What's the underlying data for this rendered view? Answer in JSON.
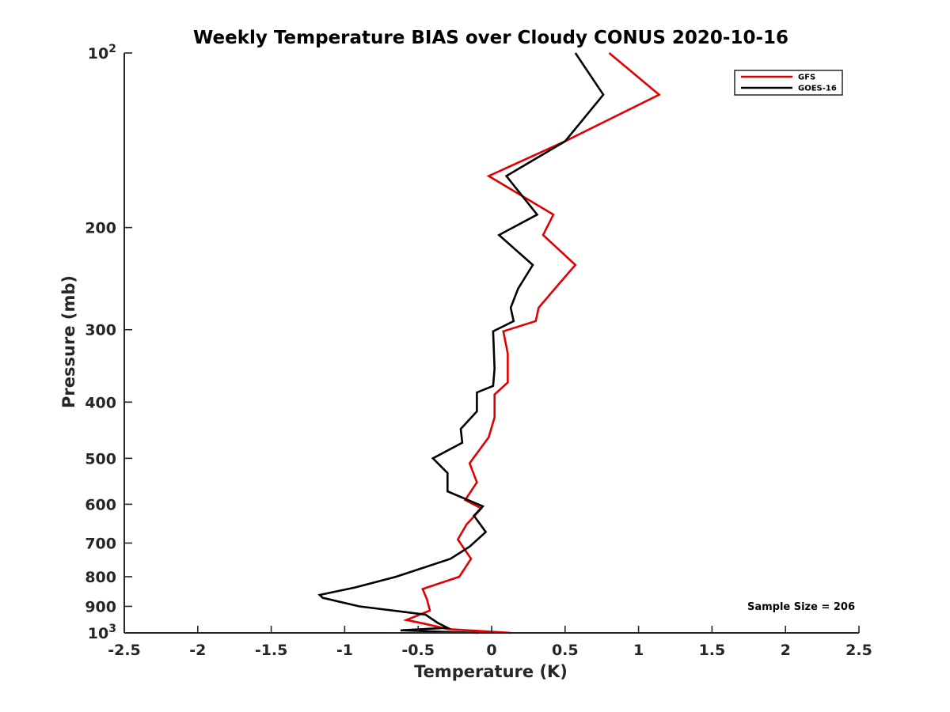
{
  "chart_data": {
    "type": "line",
    "title": "Weekly Temperature BIAS over Cloudy CONUS 2020-10-16",
    "xlabel": "Temperature (K)",
    "ylabel": "Pressure (mb)",
    "xlim": [
      -2.5,
      2.5
    ],
    "ylim": [
      1000,
      100
    ],
    "yscale": "log",
    "yreversed": true,
    "xticks": [
      -2.5,
      -2,
      -1.5,
      -1,
      -0.5,
      0,
      0.5,
      1,
      1.5,
      2,
      2.5
    ],
    "xtick_labels": [
      "-2.5",
      "-2",
      "-1.5",
      "-1",
      "-0.5",
      "0",
      "0.5",
      "1",
      "1.5",
      "2",
      "2.5"
    ],
    "yticks": [
      100,
      200,
      300,
      400,
      500,
      600,
      700,
      800,
      900,
      1000
    ],
    "ytick_labels": [
      {
        "base": "10",
        "exp": "2"
      },
      {
        "text": "200"
      },
      {
        "text": "300"
      },
      {
        "text": "400"
      },
      {
        "text": "500"
      },
      {
        "text": "600"
      },
      {
        "text": "700"
      },
      {
        "text": "800"
      },
      {
        "text": "900"
      },
      {
        "base": "10",
        "exp": "3"
      }
    ],
    "legend_position": "top-right",
    "annotation": "Sample Size = 206",
    "series": [
      {
        "name": "GFS",
        "color": "#e00000",
        "points": [
          [
            0.8,
            100
          ],
          [
            1.14,
            118
          ],
          [
            0.5,
            142
          ],
          [
            -0.02,
            163
          ],
          [
            0.42,
            190
          ],
          [
            0.35,
            206
          ],
          [
            0.57,
            232
          ],
          [
            0.43,
            255
          ],
          [
            0.32,
            275
          ],
          [
            0.3,
            290
          ],
          [
            0.08,
            302
          ],
          [
            0.11,
            330
          ],
          [
            0.11,
            370
          ],
          [
            0.02,
            388
          ],
          [
            0.02,
            425
          ],
          [
            -0.02,
            460
          ],
          [
            -0.15,
            510
          ],
          [
            -0.1,
            550
          ],
          [
            -0.18,
            590
          ],
          [
            -0.07,
            610
          ],
          [
            -0.17,
            650
          ],
          [
            -0.23,
            690
          ],
          [
            -0.14,
            745
          ],
          [
            -0.22,
            800
          ],
          [
            -0.47,
            840
          ],
          [
            -0.44,
            875
          ],
          [
            -0.42,
            915
          ],
          [
            -0.58,
            950
          ],
          [
            -0.45,
            965
          ],
          [
            -0.3,
            985
          ],
          [
            0.13,
            1000
          ]
        ]
      },
      {
        "name": "GOES-16",
        "color": "#000000",
        "points": [
          [
            0.57,
            100
          ],
          [
            0.76,
            118
          ],
          [
            0.5,
            142
          ],
          [
            0.1,
            163
          ],
          [
            0.31,
            190
          ],
          [
            0.05,
            206
          ],
          [
            0.28,
            232
          ],
          [
            0.18,
            255
          ],
          [
            0.13,
            275
          ],
          [
            0.15,
            290
          ],
          [
            0.01,
            302
          ],
          [
            0.02,
            350
          ],
          [
            0.01,
            375
          ],
          [
            -0.1,
            385
          ],
          [
            -0.1,
            415
          ],
          [
            -0.21,
            445
          ],
          [
            -0.2,
            470
          ],
          [
            -0.4,
            500
          ],
          [
            -0.3,
            530
          ],
          [
            -0.3,
            570
          ],
          [
            -0.06,
            605
          ],
          [
            -0.12,
            628
          ],
          [
            -0.04,
            670
          ],
          [
            -0.15,
            710
          ],
          [
            -0.28,
            745
          ],
          [
            -0.65,
            800
          ],
          [
            -0.93,
            835
          ],
          [
            -1.17,
            860
          ],
          [
            -1.15,
            870
          ],
          [
            -0.9,
            900
          ],
          [
            -0.45,
            930
          ],
          [
            -0.37,
            960
          ],
          [
            -0.3,
            980
          ],
          [
            -0.62,
            990
          ],
          [
            -0.09,
            1000
          ]
        ]
      }
    ]
  }
}
